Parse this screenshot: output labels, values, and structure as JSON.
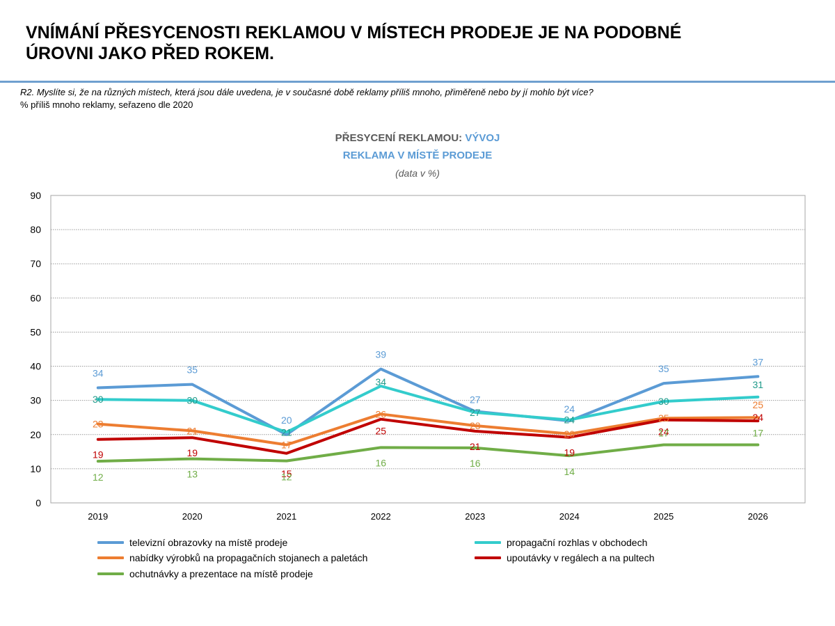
{
  "header": {
    "headline_line1": "VNÍMÁNÍ PŘESYCENOSTI REKLAMOU V MÍSTECH PRODEJE JE NA PODOBNÉ",
    "headline_line2": "ÚROVNI JAKO PŘED ROKEM.",
    "question": "R2. Myslíte si, že na různých místech, která jsou dále uvedena, je v současné době reklamy příliš mnoho, přiměřeně nebo by jí mohlo být více?",
    "note": "% příliš mnoho reklamy, seřazeno dle 2020"
  },
  "colors": {
    "accent": "#5b9bd5",
    "rule": "#6f9fcf"
  },
  "chart_data": {
    "type": "line",
    "title_part1": "PŘESYCENÍ REKLAMOU: ",
    "title_part2": "VÝVOJ",
    "subtitle": "REKLAMA V MÍSTĚ PRODEJE",
    "unit_note": "(data v %)",
    "categories": [
      "2019",
      "2020",
      "2021",
      "2022",
      "2023",
      "2024",
      "2025",
      "2026"
    ],
    "ylim": [
      0,
      90
    ],
    "yticks": [
      0,
      10,
      20,
      30,
      40,
      50,
      60,
      70,
      80,
      90
    ],
    "grid": true,
    "legend_position": "bottom",
    "series": [
      {
        "name": "televizní obrazovky na místě prodeje",
        "color": "#5b9bd5",
        "label_color": "#5b9bd5",
        "values": [
          33.7,
          34.7,
          20,
          39.2,
          26.8,
          24,
          35,
          37
        ],
        "labels": [
          "34",
          "35",
          "20",
          "39",
          "27",
          "24",
          "35",
          "37"
        ]
      },
      {
        "name": "propagační rozhlas v obchodech",
        "color": "#33cccc",
        "label_color": "#1f9a8a",
        "values": [
          30.3,
          30,
          20.7,
          34.2,
          26.5,
          24.3,
          29.7,
          31
        ],
        "labels": [
          "30",
          "30",
          "21",
          "34",
          "27",
          "24",
          "30",
          "31"
        ]
      },
      {
        "name": "nabídky výrobků na propagačních stojanech a paletách",
        "color": "#ed7d31",
        "label_color": "#ed7d31",
        "values": [
          23.1,
          21.1,
          17,
          26,
          22.6,
          20.2,
          24.8,
          25
        ],
        "labels": [
          "23",
          "21",
          "17",
          "26",
          "23",
          "20",
          "25",
          "25"
        ]
      },
      {
        "name": "upoutávky v regálech a na pultech",
        "color": "#c00000",
        "label_color": "#c00000",
        "values": [
          18.6,
          19.1,
          14.5,
          24.5,
          21,
          19.2,
          24.3,
          24
        ],
        "labels": [
          "19",
          "19",
          "15",
          "25",
          "21",
          "19",
          "24",
          "24"
        ]
      },
      {
        "name": "ochutnávky a prezentace na místě prodeje",
        "color": "#70ad47",
        "label_color": "#70ad47",
        "values": [
          12.2,
          12.9,
          12.3,
          16.2,
          16.1,
          13.8,
          17,
          17
        ],
        "labels": [
          "12",
          "13",
          "12",
          "16",
          "16",
          "14",
          "17",
          "17"
        ]
      }
    ]
  }
}
